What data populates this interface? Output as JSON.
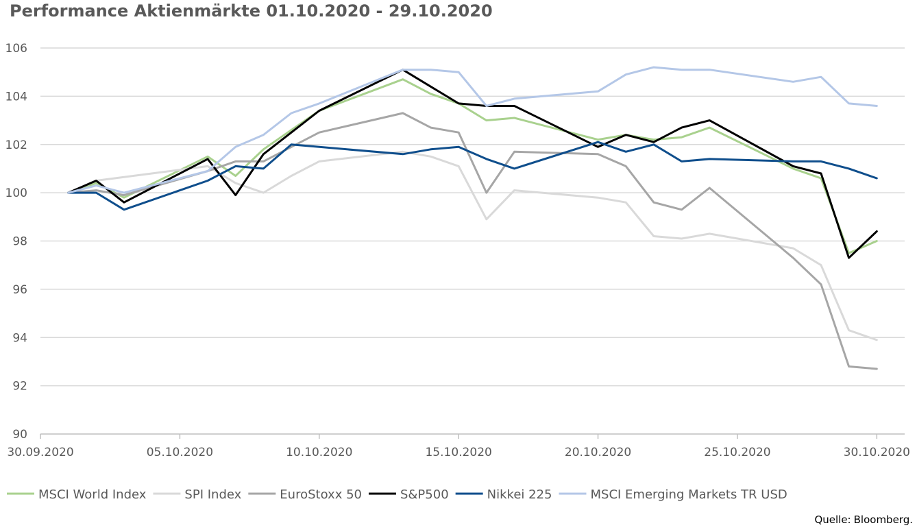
{
  "source": {
    "label": "Quelle:",
    "value": "Bloomberg."
  },
  "colors": {
    "gridline": "#d9d9d9",
    "axis": "#bfbfbf",
    "tick_text": "#595959"
  },
  "chart_data": {
    "type": "line",
    "title": "Performance Aktienmärkte 01.10.2020 - 29.10.2020",
    "xlabel": "",
    "ylabel": "",
    "ylim": [
      90,
      106
    ],
    "yticks": [
      90,
      92,
      94,
      96,
      98,
      100,
      102,
      104,
      106
    ],
    "xlim": [
      "2020-09-30",
      "2020-10-31"
    ],
    "xticks": [
      {
        "date": "2020-09-30",
        "label": "30.09.2020"
      },
      {
        "date": "2020-10-05",
        "label": "05.10.2020"
      },
      {
        "date": "2020-10-10",
        "label": "10.10.2020"
      },
      {
        "date": "2020-10-15",
        "label": "15.10.2020"
      },
      {
        "date": "2020-10-20",
        "label": "20.10.2020"
      },
      {
        "date": "2020-10-25",
        "label": "25.10.2020"
      },
      {
        "date": "2020-10-30",
        "label": "30.10.2020"
      }
    ],
    "grid": true,
    "legend": "bottom",
    "series": [
      {
        "name": "MSCI World Index",
        "color": "#a9d18e",
        "points": [
          [
            "2020-10-01",
            100.0
          ],
          [
            "2020-10-02",
            100.4
          ],
          [
            "2020-10-03",
            99.8
          ],
          [
            "2020-10-06",
            101.5
          ],
          [
            "2020-10-07",
            100.7
          ],
          [
            "2020-10-08",
            101.8
          ],
          [
            "2020-10-09",
            102.6
          ],
          [
            "2020-10-10",
            103.4
          ],
          [
            "2020-10-13",
            104.7
          ],
          [
            "2020-10-14",
            104.1
          ],
          [
            "2020-10-15",
            103.7
          ],
          [
            "2020-10-16",
            103.0
          ],
          [
            "2020-10-17",
            103.1
          ],
          [
            "2020-10-20",
            102.2
          ],
          [
            "2020-10-21",
            102.4
          ],
          [
            "2020-10-22",
            102.2
          ],
          [
            "2020-10-23",
            102.3
          ],
          [
            "2020-10-24",
            102.7
          ],
          [
            "2020-10-27",
            101.0
          ],
          [
            "2020-10-28",
            100.6
          ],
          [
            "2020-10-29",
            97.5
          ],
          [
            "2020-10-30",
            98.0
          ]
        ]
      },
      {
        "name": "SPI Index",
        "color": "#d9d9d9",
        "points": [
          [
            "2020-10-01",
            100.0
          ],
          [
            "2020-10-02",
            100.5
          ],
          [
            "2020-10-06",
            101.1
          ],
          [
            "2020-10-07",
            100.4
          ],
          [
            "2020-10-08",
            100.0
          ],
          [
            "2020-10-09",
            100.7
          ],
          [
            "2020-10-10",
            101.3
          ],
          [
            "2020-10-13",
            101.7
          ],
          [
            "2020-10-14",
            101.5
          ],
          [
            "2020-10-15",
            101.1
          ],
          [
            "2020-10-16",
            98.9
          ],
          [
            "2020-10-17",
            100.1
          ],
          [
            "2020-10-20",
            99.8
          ],
          [
            "2020-10-21",
            99.6
          ],
          [
            "2020-10-22",
            98.2
          ],
          [
            "2020-10-23",
            98.1
          ],
          [
            "2020-10-24",
            98.3
          ],
          [
            "2020-10-27",
            97.7
          ],
          [
            "2020-10-28",
            97.0
          ],
          [
            "2020-10-29",
            94.3
          ],
          [
            "2020-10-30",
            93.9
          ]
        ]
      },
      {
        "name": "EuroStoxx 50",
        "color": "#a6a6a6",
        "points": [
          [
            "2020-10-01",
            100.0
          ],
          [
            "2020-10-02",
            100.1
          ],
          [
            "2020-10-03",
            99.9
          ],
          [
            "2020-10-06",
            100.9
          ],
          [
            "2020-10-07",
            101.3
          ],
          [
            "2020-10-08",
            101.3
          ],
          [
            "2020-10-09",
            101.9
          ],
          [
            "2020-10-10",
            102.5
          ],
          [
            "2020-10-13",
            103.3
          ],
          [
            "2020-10-14",
            102.7
          ],
          [
            "2020-10-15",
            102.5
          ],
          [
            "2020-10-16",
            100.0
          ],
          [
            "2020-10-17",
            101.7
          ],
          [
            "2020-10-20",
            101.6
          ],
          [
            "2020-10-21",
            101.1
          ],
          [
            "2020-10-22",
            99.6
          ],
          [
            "2020-10-23",
            99.3
          ],
          [
            "2020-10-24",
            100.2
          ],
          [
            "2020-10-27",
            97.3
          ],
          [
            "2020-10-28",
            96.2
          ],
          [
            "2020-10-29",
            92.8
          ],
          [
            "2020-10-30",
            92.7
          ]
        ]
      },
      {
        "name": "S&P500",
        "color": "#000000",
        "points": [
          [
            "2020-10-01",
            100.0
          ],
          [
            "2020-10-02",
            100.5
          ],
          [
            "2020-10-03",
            99.6
          ],
          [
            "2020-10-06",
            101.4
          ],
          [
            "2020-10-07",
            99.9
          ],
          [
            "2020-10-08",
            101.6
          ],
          [
            "2020-10-09",
            102.5
          ],
          [
            "2020-10-10",
            103.4
          ],
          [
            "2020-10-13",
            105.1
          ],
          [
            "2020-10-14",
            104.4
          ],
          [
            "2020-10-15",
            103.7
          ],
          [
            "2020-10-16",
            103.6
          ],
          [
            "2020-10-17",
            103.6
          ],
          [
            "2020-10-20",
            101.9
          ],
          [
            "2020-10-21",
            102.4
          ],
          [
            "2020-10-22",
            102.1
          ],
          [
            "2020-10-23",
            102.7
          ],
          [
            "2020-10-24",
            103.0
          ],
          [
            "2020-10-27",
            101.1
          ],
          [
            "2020-10-28",
            100.8
          ],
          [
            "2020-10-29",
            97.3
          ],
          [
            "2020-10-30",
            98.4
          ]
        ]
      },
      {
        "name": "Nikkei 225",
        "color": "#0f4e8c",
        "points": [
          [
            "2020-10-01",
            100.0
          ],
          [
            "2020-10-02",
            100.0
          ],
          [
            "2020-10-03",
            99.3
          ],
          [
            "2020-10-06",
            100.5
          ],
          [
            "2020-10-07",
            101.1
          ],
          [
            "2020-10-08",
            101.0
          ],
          [
            "2020-10-09",
            102.0
          ],
          [
            "2020-10-10",
            101.9
          ],
          [
            "2020-10-13",
            101.6
          ],
          [
            "2020-10-14",
            101.8
          ],
          [
            "2020-10-15",
            101.9
          ],
          [
            "2020-10-16",
            101.4
          ],
          [
            "2020-10-17",
            101.0
          ],
          [
            "2020-10-20",
            102.1
          ],
          [
            "2020-10-21",
            101.7
          ],
          [
            "2020-10-22",
            102.0
          ],
          [
            "2020-10-23",
            101.3
          ],
          [
            "2020-10-24",
            101.4
          ],
          [
            "2020-10-27",
            101.3
          ],
          [
            "2020-10-28",
            101.3
          ],
          [
            "2020-10-29",
            101.0
          ],
          [
            "2020-10-30",
            100.6
          ]
        ]
      },
      {
        "name": "MSCI Emerging Markets TR USD",
        "color": "#b4c7e7",
        "points": [
          [
            "2020-10-01",
            100.0
          ],
          [
            "2020-10-02",
            100.3
          ],
          [
            "2020-10-03",
            100.0
          ],
          [
            "2020-10-06",
            100.9
          ],
          [
            "2020-10-07",
            101.9
          ],
          [
            "2020-10-08",
            102.4
          ],
          [
            "2020-10-09",
            103.3
          ],
          [
            "2020-10-10",
            103.7
          ],
          [
            "2020-10-13",
            105.1
          ],
          [
            "2020-10-14",
            105.1
          ],
          [
            "2020-10-15",
            105.0
          ],
          [
            "2020-10-16",
            103.6
          ],
          [
            "2020-10-17",
            103.9
          ],
          [
            "2020-10-20",
            104.2
          ],
          [
            "2020-10-21",
            104.9
          ],
          [
            "2020-10-22",
            105.2
          ],
          [
            "2020-10-23",
            105.1
          ],
          [
            "2020-10-24",
            105.1
          ],
          [
            "2020-10-27",
            104.6
          ],
          [
            "2020-10-28",
            104.8
          ],
          [
            "2020-10-29",
            103.7
          ],
          [
            "2020-10-30",
            103.6
          ]
        ]
      }
    ]
  }
}
